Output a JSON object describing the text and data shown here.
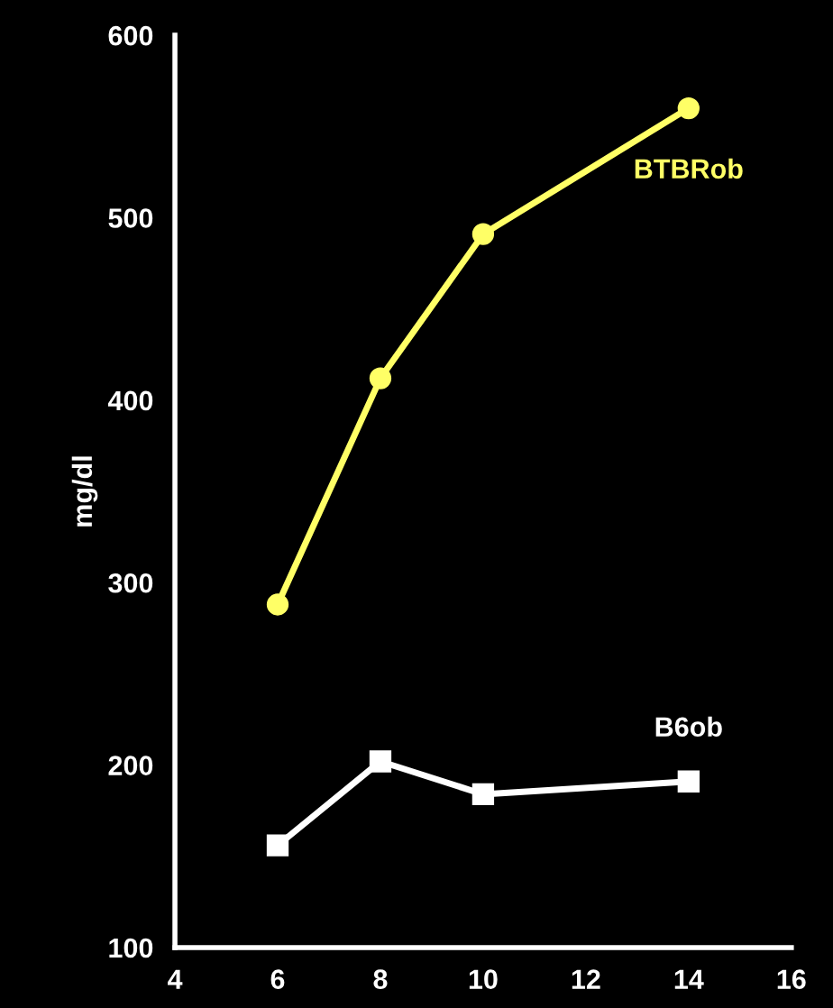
{
  "chart_data": {
    "type": "line",
    "ylabel": "mg/dl",
    "xlim": [
      4,
      16
    ],
    "xticks": [
      4,
      6,
      8,
      10,
      12,
      14,
      16
    ],
    "ylim": [
      100,
      600
    ],
    "yticks": [
      100,
      200,
      300,
      400,
      500,
      600
    ],
    "grid": false,
    "legend": false,
    "series": [
      {
        "name": "BTBRob",
        "color": "#ffff66",
        "marker": "circle",
        "x": [
          6,
          8,
          10,
          14
        ],
        "values": [
          288,
          412,
          491,
          560
        ]
      },
      {
        "name": "B6ob",
        "color": "#ffffff",
        "marker": "square",
        "x": [
          6,
          8,
          10,
          14
        ],
        "values": [
          156,
          202,
          184,
          191
        ]
      }
    ]
  }
}
